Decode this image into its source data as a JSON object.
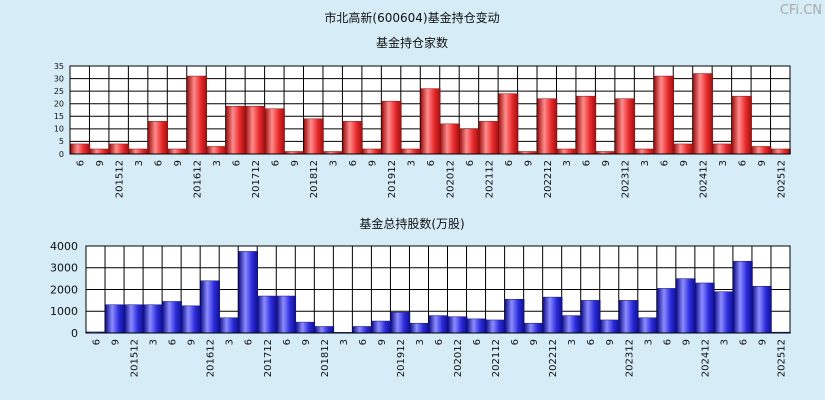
{
  "page": {
    "title": "市北高新(600604)基金持仓变动",
    "watermark": "CFi.CN"
  },
  "colors": {
    "background": "#d6ecf7",
    "plot_bg": "#ffffff",
    "grid": "#000000",
    "red_bar": "#e8292b",
    "blue_bar": "#2b2bdc"
  },
  "chart_data": [
    {
      "type": "bar",
      "title": "基金持仓家数",
      "ylim": [
        0,
        35
      ],
      "yticks": [
        0,
        5,
        10,
        15,
        20,
        25,
        30,
        35
      ],
      "grid": true,
      "categories": [
        "6",
        "9",
        "201512",
        "3",
        "6",
        "9",
        "201612",
        "3",
        "6",
        "201712",
        "6",
        "9",
        "201812",
        "3",
        "6",
        "9",
        "201912",
        "3",
        "6",
        "202012",
        "6",
        "202112",
        "6",
        "9",
        "202212",
        "3",
        "6",
        "9",
        "202312",
        "3",
        "6",
        "9",
        "202412",
        "3",
        "6",
        "9",
        "202512"
      ],
      "values": [
        4,
        2,
        4,
        2,
        13,
        2,
        31,
        3,
        19,
        19,
        18,
        1,
        14,
        1,
        13,
        2,
        21,
        2,
        26,
        12,
        10,
        13,
        24,
        1,
        22,
        2,
        23,
        1,
        22,
        2,
        31,
        4,
        32,
        4,
        23,
        3,
        2
      ]
    },
    {
      "type": "bar",
      "title": "基金总持股数(万股)",
      "ylim": [
        0,
        4000
      ],
      "yticks": [
        0,
        1000,
        2000,
        3000,
        4000
      ],
      "grid": true,
      "categories": [
        "6",
        "9",
        "201512",
        "3",
        "6",
        "9",
        "201612",
        "3",
        "6",
        "201712",
        "6",
        "9",
        "201812",
        "3",
        "6",
        "9",
        "201912",
        "3",
        "6",
        "202012",
        "6",
        "202112",
        "6",
        "9",
        "202212",
        "3",
        "6",
        "9",
        "202312",
        "3",
        "6",
        "9",
        "202412",
        "3",
        "6",
        "9",
        "202512"
      ],
      "values": [
        50,
        1300,
        1300,
        1300,
        1450,
        1250,
        2400,
        700,
        3750,
        1700,
        1700,
        500,
        300,
        30,
        300,
        550,
        950,
        450,
        800,
        750,
        650,
        600,
        1550,
        450,
        1650,
        800,
        1500,
        600,
        1500,
        700,
        2050,
        2500,
        2300,
        1900,
        3300,
        2150,
        40
      ]
    }
  ]
}
